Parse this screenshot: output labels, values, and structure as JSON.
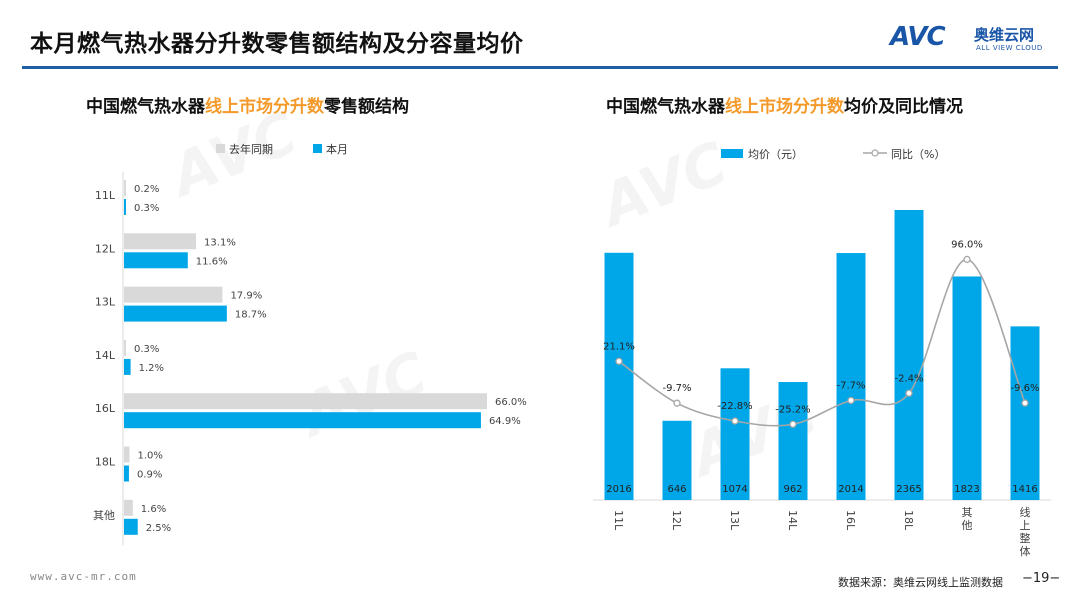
{
  "slide": {
    "title": "本月燃气热水器分升数零售额结构及分容量均价",
    "logo_avc": "AVC",
    "logo_cn": "奥维云网",
    "logo_en": "ALL VIEW CLOUD",
    "url": "www.avc-mr.com",
    "source": "数据来源：奥维云网线上监测数据",
    "page": "−19−"
  },
  "left_panel": {
    "title_a": "中国燃气热水器",
    "title_hl": "线上市场分升数",
    "title_b": "零售额结构"
  },
  "right_panel": {
    "title_a": "中国燃气热水器",
    "title_hl": "线上市场分升数",
    "title_b": "均价及同比情况"
  },
  "colors": {
    "blue": "#00a7e8",
    "gray": "#d9d9d9",
    "orange": "#f39a2a",
    "title_rule": "#1f5fa6",
    "line": "#a6a6a6"
  },
  "chart_data": [
    {
      "type": "bar",
      "orientation": "horizontal",
      "categories": [
        "11L",
        "12L",
        "13L",
        "14L",
        "16L",
        "18L",
        "其他"
      ],
      "legend_position": "top",
      "series": [
        {
          "name": "去年同期",
          "values": [
            0.2,
            13.1,
            17.9,
            0.3,
            66.0,
            1.0,
            1.6
          ],
          "labels": [
            "0.2%",
            "13.1%",
            "17.9%",
            "0.3%",
            "66.0%",
            "1.0%",
            "1.6%"
          ]
        },
        {
          "name": "本月",
          "values": [
            0.3,
            11.6,
            18.7,
            1.2,
            64.9,
            0.9,
            2.5
          ],
          "labels": [
            "0.3%",
            "11.6%",
            "18.7%",
            "1.2%",
            "64.9%",
            "0.9%",
            "2.5%"
          ]
        }
      ]
    },
    {
      "type": "bar",
      "categories": [
        "11L",
        "12L",
        "13L",
        "14L",
        "16L",
        "18L",
        "其他",
        "线上整体"
      ],
      "legend_position": "top",
      "series": [
        {
          "name": "均价（元）",
          "type": "bar",
          "values": [
            2016,
            646,
            1074,
            962,
            2014,
            2365,
            1823,
            1416
          ],
          "labels": [
            "2016",
            "646",
            "1074",
            "962",
            "2014",
            "2365",
            "1823",
            "1416"
          ]
        },
        {
          "name": "同比（%）",
          "type": "line",
          "values": [
            21.1,
            -9.7,
            -22.8,
            -25.2,
            -7.7,
            -2.4,
            96.0,
            -9.6
          ],
          "labels": [
            "21.1%",
            "-9.7%",
            "-22.8%",
            "-25.2%",
            "-7.7%",
            "-2.4%",
            "96.0%",
            "-9.6%"
          ]
        }
      ]
    }
  ]
}
